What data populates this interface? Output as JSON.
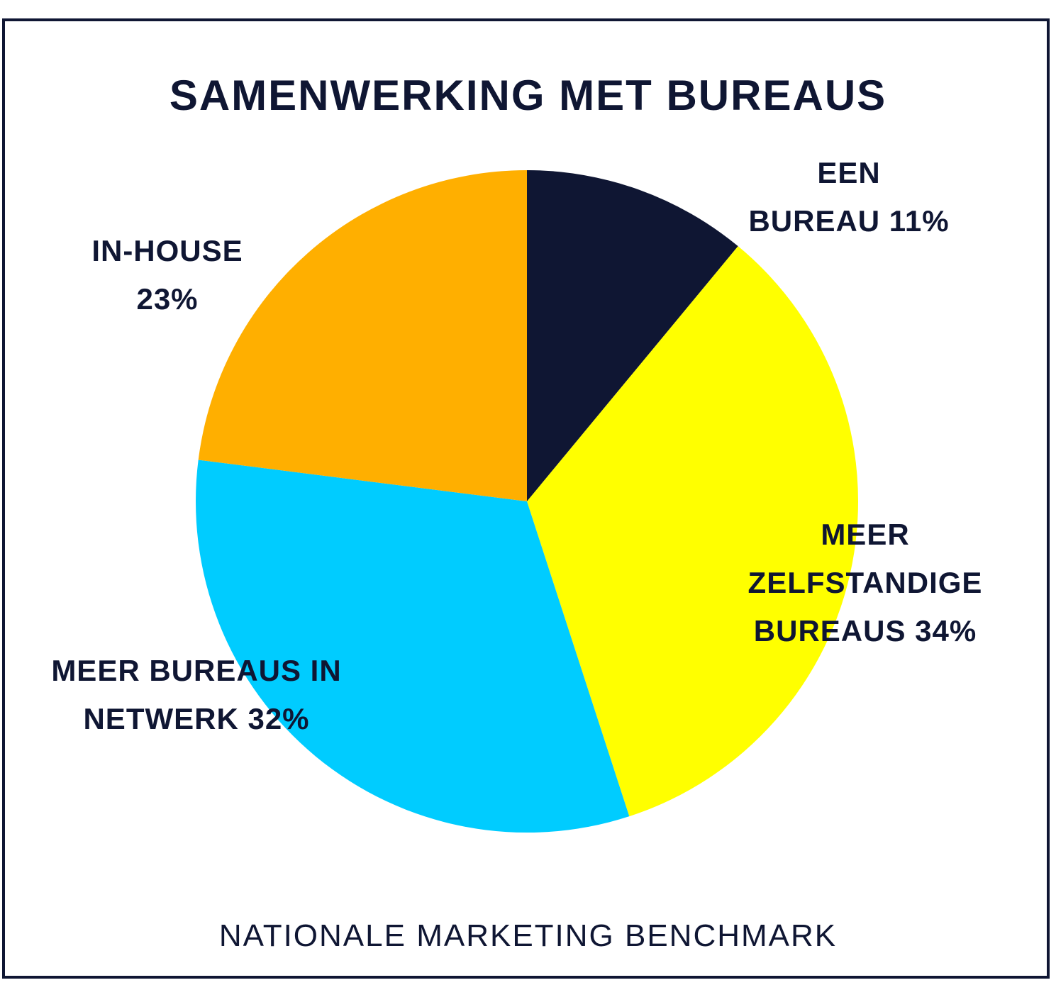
{
  "footer": {
    "source": "NATIONALE MARKETING BENCHMARK"
  },
  "chart_data": {
    "type": "pie",
    "title": "SAMENWERKING MET BUREAUS",
    "legend": "none",
    "slices": [
      {
        "label_lines": [
          "EEN",
          "BUREAU 11%"
        ],
        "value": 11,
        "color": "#0f1633"
      },
      {
        "label_lines": [
          "MEER",
          "ZELFSTANDIGE",
          "BUREAUS 34%"
        ],
        "value": 34,
        "color": "#ffff00"
      },
      {
        "label_lines": [
          "MEER BUREAUS IN",
          "NETWERK 32%"
        ],
        "value": 32,
        "color": "#00ccff"
      },
      {
        "label_lines": [
          "IN-HOUSE",
          "23%"
        ],
        "value": 23,
        "color": "#ffaf00"
      }
    ]
  }
}
